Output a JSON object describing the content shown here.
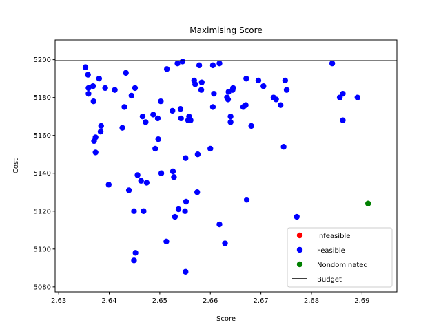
{
  "chart_data": {
    "type": "scatter",
    "title": "Maximising Score",
    "xlabel": "Score",
    "ylabel": "Cost",
    "xlim": [
      2.6293,
      2.6969
    ],
    "ylim": [
      5077.4,
      5210.4
    ],
    "xticks": [
      2.63,
      2.64,
      2.65,
      2.66,
      2.67,
      2.68,
      2.69
    ],
    "xtick_labels": [
      "2.63",
      "2.64",
      "2.65",
      "2.66",
      "2.67",
      "2.68",
      "2.69"
    ],
    "yticks": [
      5080,
      5100,
      5120,
      5140,
      5160,
      5180,
      5200
    ],
    "ytick_labels": [
      "5080",
      "5100",
      "5120",
      "5140",
      "5160",
      "5180",
      "5200"
    ],
    "grid": false,
    "legend_position": "lower-right",
    "budget": 5199.4,
    "series": [
      {
        "name": "Infeasible",
        "color": "#ff0000",
        "points": []
      },
      {
        "name": "Feasible",
        "color": "#0000ff",
        "points": [
          [
            2.6353,
            5196
          ],
          [
            2.6358,
            5192
          ],
          [
            2.6359,
            5185
          ],
          [
            2.6359,
            5182
          ],
          [
            2.6368,
            5186
          ],
          [
            2.6369,
            5178
          ],
          [
            2.637,
            5157
          ],
          [
            2.6373,
            5159
          ],
          [
            2.6373,
            5151
          ],
          [
            2.638,
            5190
          ],
          [
            2.6383,
            5162
          ],
          [
            2.6384,
            5165
          ],
          [
            2.6392,
            5185
          ],
          [
            2.6399,
            5134
          ],
          [
            2.6411,
            5184
          ],
          [
            2.6433,
            5193
          ],
          [
            2.6426,
            5164
          ],
          [
            2.643,
            5175
          ],
          [
            2.6439,
            5131
          ],
          [
            2.6444,
            5181
          ],
          [
            2.6451,
            5185
          ],
          [
            2.6449,
            5120
          ],
          [
            2.6449,
            5094
          ],
          [
            2.6452,
            5098
          ],
          [
            2.6456,
            5139
          ],
          [
            2.6463,
            5136
          ],
          [
            2.6466,
            5170
          ],
          [
            2.6468,
            5120
          ],
          [
            2.6472,
            5167
          ],
          [
            2.6474,
            5135
          ],
          [
            2.6487,
            5171
          ],
          [
            2.6491,
            5153
          ],
          [
            2.6496,
            5169
          ],
          [
            2.6497,
            5158
          ],
          [
            2.6502,
            5178
          ],
          [
            2.6503,
            5140
          ],
          [
            2.6514,
            5195
          ],
          [
            2.6513,
            5104
          ],
          [
            2.6525,
            5173
          ],
          [
            2.6526,
            5141
          ],
          [
            2.6528,
            5138
          ],
          [
            2.653,
            5117
          ],
          [
            2.6535,
            5198
          ],
          [
            2.6537,
            5121
          ],
          [
            2.6541,
            5174
          ],
          [
            2.6542,
            5169
          ],
          [
            2.6545,
            5199
          ],
          [
            2.655,
            5120
          ],
          [
            2.6551,
            5148
          ],
          [
            2.6551,
            5088
          ],
          [
            2.6552,
            5125
          ],
          [
            2.6556,
            5168
          ],
          [
            2.6558,
            5170
          ],
          [
            2.6561,
            5168
          ],
          [
            2.6568,
            5189
          ],
          [
            2.657,
            5187
          ],
          [
            2.6574,
            5130
          ],
          [
            2.6575,
            5150
          ],
          [
            2.6578,
            5197
          ],
          [
            2.6582,
            5184
          ],
          [
            2.6583,
            5188
          ],
          [
            2.66,
            5153
          ],
          [
            2.6605,
            5197
          ],
          [
            2.6605,
            5175
          ],
          [
            2.6607,
            5182
          ],
          [
            2.6618,
            5198
          ],
          [
            2.6618,
            5113
          ],
          [
            2.6629,
            5103
          ],
          [
            2.6633,
            5180
          ],
          [
            2.6635,
            5179
          ],
          [
            2.6636,
            5183
          ],
          [
            2.664,
            5170
          ],
          [
            2.664,
            5167
          ],
          [
            2.6644,
            5184
          ],
          [
            2.6645,
            5185
          ],
          [
            2.6665,
            5175
          ],
          [
            2.667,
            5176
          ],
          [
            2.6671,
            5190
          ],
          [
            2.6672,
            5126
          ],
          [
            2.6681,
            5165
          ],
          [
            2.6695,
            5189
          ],
          [
            2.6705,
            5186
          ],
          [
            2.6725,
            5180
          ],
          [
            2.673,
            5179
          ],
          [
            2.6739,
            5176
          ],
          [
            2.6745,
            5154
          ],
          [
            2.6748,
            5189
          ],
          [
            2.6751,
            5184
          ],
          [
            2.6771,
            5117
          ],
          [
            2.6841,
            5198
          ],
          [
            2.6856,
            5180
          ],
          [
            2.6862,
            5182
          ],
          [
            2.6862,
            5168
          ],
          [
            2.6891,
            5180
          ]
        ]
      },
      {
        "name": "Nondominated",
        "color": "#008000",
        "points": [
          [
            2.6912,
            5124
          ]
        ]
      }
    ],
    "budget_label": "Budget"
  }
}
